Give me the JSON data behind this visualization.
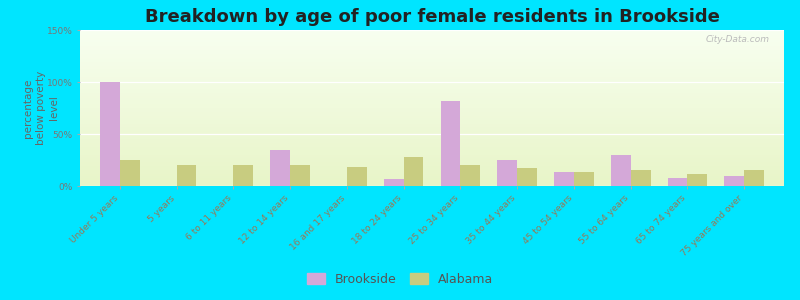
{
  "title": "Breakdown by age of poor female residents in Brookside",
  "ylabel": "percentage\nbelow poverty\nlevel",
  "categories": [
    "Under 5 years",
    "5 years",
    "6 to 11 years",
    "12 to 14 years",
    "16 and 17 years",
    "18 to 24 years",
    "25 to 34 years",
    "35 to 44 years",
    "45 to 54 years",
    "55 to 64 years",
    "65 to 74 years",
    "75 years and over"
  ],
  "brookside": [
    100,
    0,
    0,
    35,
    0,
    7,
    82,
    25,
    13,
    30,
    8,
    10
  ],
  "alabama": [
    25,
    20,
    20,
    20,
    18,
    28,
    20,
    17,
    13,
    15,
    12,
    15
  ],
  "brookside_color": "#d4a8d8",
  "alabama_color": "#c8cc80",
  "bg_color": "#00e5ff",
  "plot_bg_top": "#f8fff0",
  "plot_bg_bottom": "#e8f5c8",
  "ylim": [
    0,
    150
  ],
  "yticks": [
    0,
    50,
    100,
    150
  ],
  "ytick_labels": [
    "0%",
    "50%",
    "100%",
    "150%"
  ],
  "title_fontsize": 13,
  "ylabel_fontsize": 7.5,
  "tick_fontsize": 6.5,
  "legend_fontsize": 9,
  "bar_width": 0.35,
  "watermark": "City-Data.com"
}
